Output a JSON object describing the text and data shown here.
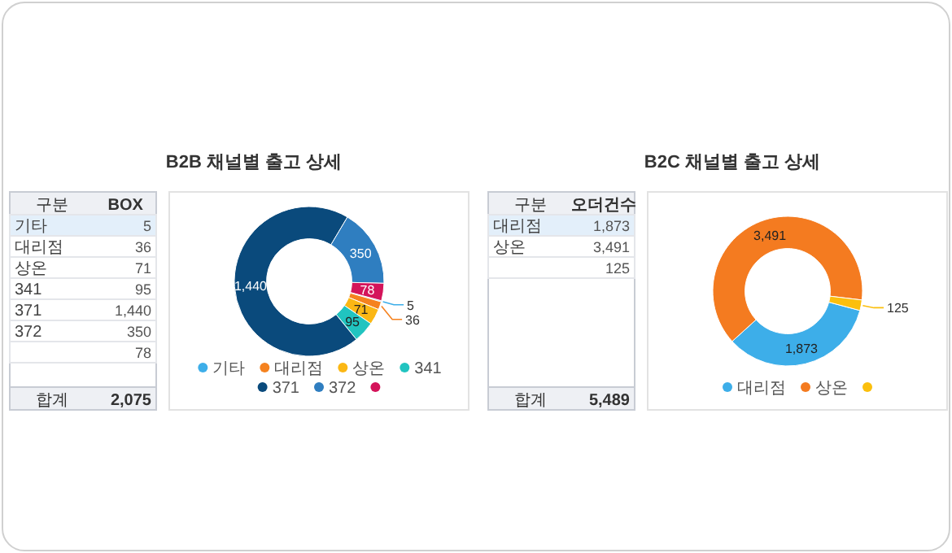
{
  "chart_data": [
    {
      "type": "donut",
      "title": "B2B 채널별 출고 상세",
      "categories": [
        "기타",
        "대리점",
        "상온",
        "341",
        "371",
        "372",
        null
      ],
      "values": [
        5,
        36,
        71,
        95,
        1440,
        350,
        78
      ],
      "colors": [
        "#3daee9",
        "#f5821f",
        "#fbb714",
        "#21c4c0",
        "#0a4a7c",
        "#2f7ec0",
        "#d4145a"
      ],
      "value_labels": [
        "5",
        "36",
        "71",
        "95",
        "1,440",
        "350",
        "78"
      ],
      "legend": "bottom",
      "annotations": [
        "구분",
        "BOX",
        "합계",
        "2,075"
      ]
    },
    {
      "type": "donut",
      "title": "B2C 채널별 출고 상세",
      "categories": [
        "대리점",
        "상온",
        null
      ],
      "values": [
        1873,
        3491,
        125
      ],
      "colors": [
        "#3daee9",
        "#f47b20",
        "#fbbf0d"
      ],
      "value_labels": [
        "1,873",
        "3,491",
        "125"
      ],
      "legend": "bottom",
      "annotations": [
        "구분",
        "오더건수",
        "합계",
        "5,489"
      ]
    }
  ]
}
